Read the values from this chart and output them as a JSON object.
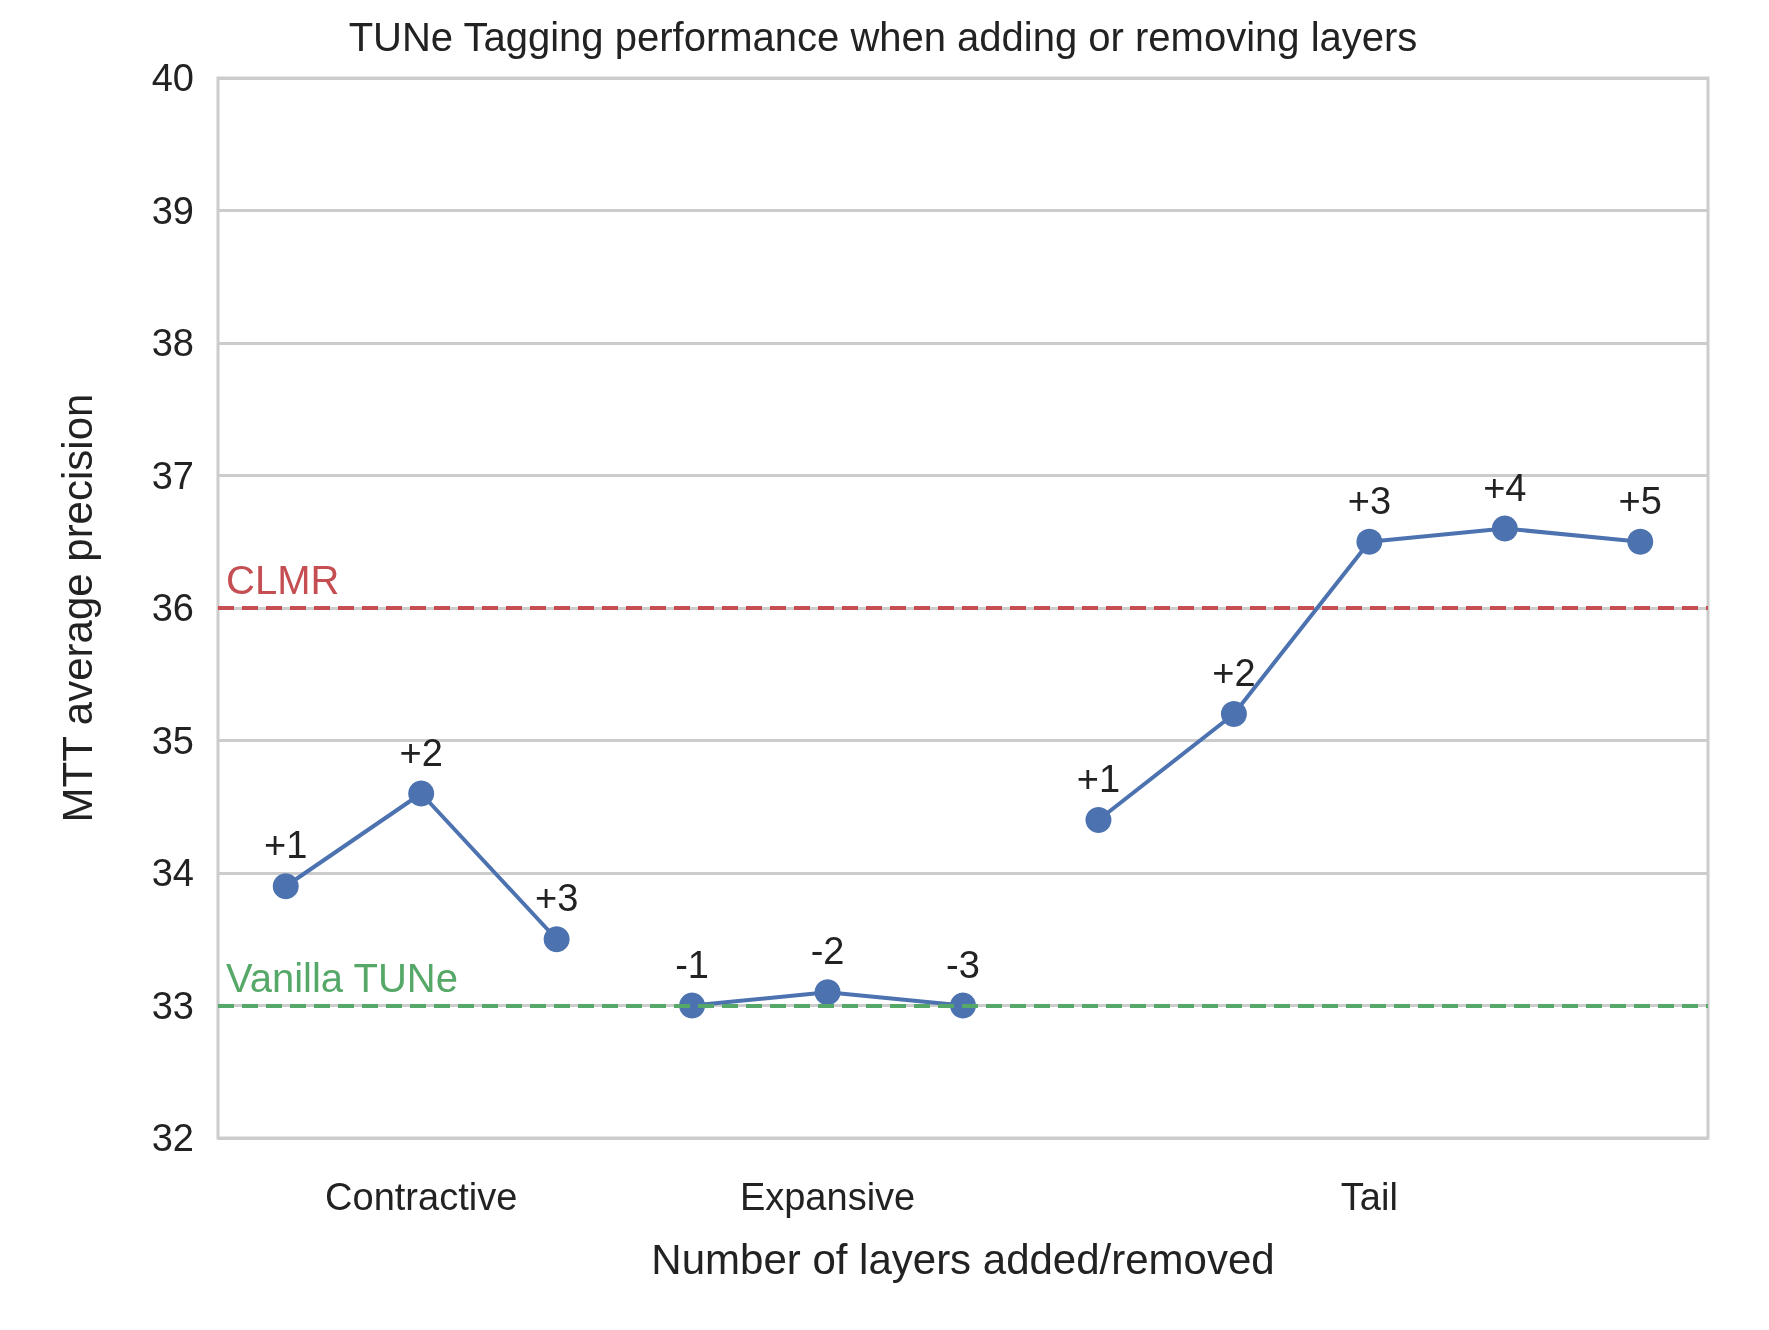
{
  "chart_data": {
    "type": "line",
    "title": "TUNe Tagging performance when adding or removing layers",
    "xlabel": "Number of layers added/removed",
    "ylabel": "MTT average precision",
    "categories": [
      null,
      "Contractive",
      null,
      null,
      "Expansive",
      null,
      null,
      null,
      "Tail",
      null,
      null
    ],
    "series": [
      {
        "color": "#4c72b0",
        "values": [
          33.9,
          34.6,
          33.5,
          null,
          null,
          null,
          null,
          null,
          null,
          null,
          null
        ]
      },
      {
        "color": "#4c72b0",
        "values": [
          null,
          null,
          null,
          33.0,
          33.1,
          33.0,
          null,
          null,
          null,
          null,
          null
        ]
      },
      {
        "color": "#4c72b0",
        "values": [
          null,
          null,
          null,
          null,
          null,
          null,
          34.4,
          35.2,
          36.5,
          36.6,
          36.5
        ]
      }
    ],
    "annotations": [
      {
        "text": "+1",
        "y": 33.9
      },
      {
        "text": "+2",
        "y": 34.6
      },
      {
        "text": "+3",
        "y": 33.5
      },
      {
        "text": "-1",
        "y": 33.0
      },
      {
        "text": "-2",
        "y": 33.1
      },
      {
        "text": "-3",
        "y": 33.0
      },
      {
        "text": "+1",
        "y": 34.4
      },
      {
        "text": "+2",
        "y": 35.2
      },
      {
        "text": "+3",
        "y": 36.5
      },
      {
        "text": "+4",
        "y": 36.6
      },
      {
        "text": "+5",
        "y": 36.5
      }
    ],
    "ylim": [
      32,
      40
    ],
    "yticks": [
      32,
      33,
      34,
      35,
      36,
      37,
      38,
      39,
      40
    ],
    "ref_lines": [
      {
        "axis": "y",
        "value": 36,
        "label": "CLMR",
        "color": "#c44e52",
        "line_style": "dashed"
      },
      {
        "axis": "y",
        "value": 33,
        "label": "Vanilla TUNe",
        "color": "#55a868",
        "line_style": "dashed"
      }
    ],
    "grid": "y",
    "marker": "circle",
    "line_style": "solid"
  }
}
